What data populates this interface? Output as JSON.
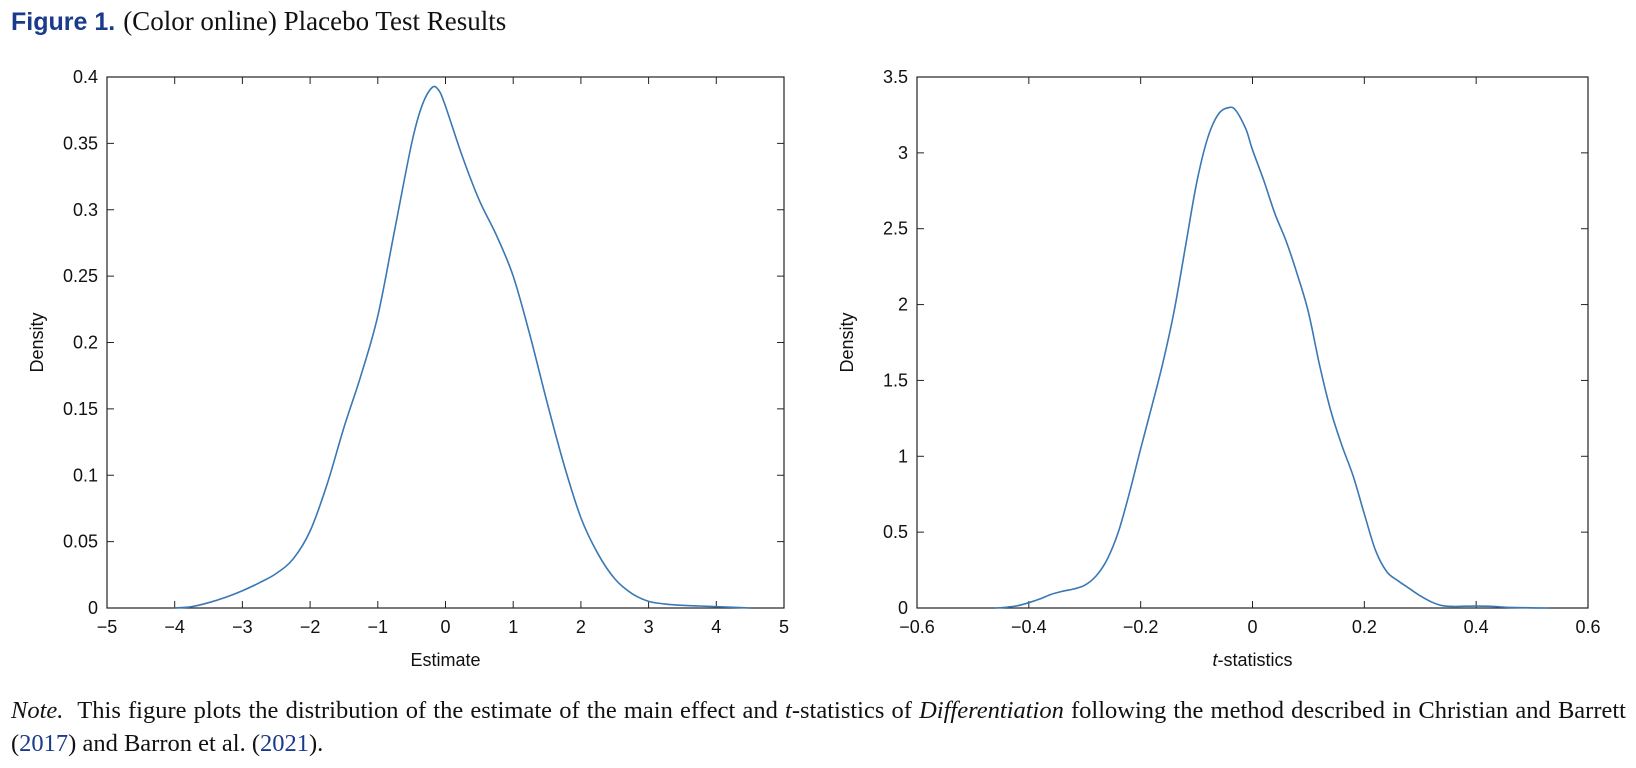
{
  "figure": {
    "label": "Figure 1.",
    "title": "(Color online) Placebo Test Results"
  },
  "note": {
    "lead": "Note.",
    "text_1": "This figure plots the distribution of the estimate of the main effect and ",
    "t_italic": "t",
    "text_2": "-statistics of ",
    "diff_italic": "Differentiation",
    "text_3": " following the method described in Christian and Barrett (",
    "cite_1": "2017",
    "text_4": ") and Barron et al. (",
    "cite_2": "2021",
    "text_5": ")."
  },
  "colors": {
    "line": "#3a78b4",
    "axis": "#222222",
    "figure_label": "#1a3a8c"
  },
  "chart_data": [
    {
      "type": "line",
      "title": "",
      "xlabel": "Estimate",
      "ylabel": "Density",
      "xlim": [
        -5,
        5
      ],
      "ylim": [
        0,
        0.4
      ],
      "xticks": [
        -5,
        -4,
        -3,
        -2,
        -1,
        0,
        1,
        2,
        3,
        4,
        5
      ],
      "xtick_labels": [
        "−5",
        "−4",
        "−3",
        "−2",
        "−1",
        "0",
        "1",
        "2",
        "3",
        "4",
        "5"
      ],
      "yticks": [
        0,
        0.05,
        0.1,
        0.15,
        0.2,
        0.25,
        0.3,
        0.35,
        0.4
      ],
      "ytick_labels": [
        "0",
        "0.05",
        "0.1",
        "0.15",
        "0.2",
        "0.25",
        "0.3",
        "0.35",
        "0.4"
      ],
      "grid": false,
      "series": [
        {
          "x": [
            -4.0,
            -3.75,
            -3.5,
            -3.25,
            -3.0,
            -2.75,
            -2.5,
            -2.25,
            -2.0,
            -1.75,
            -1.5,
            -1.25,
            -1.0,
            -0.75,
            -0.5,
            -0.35,
            -0.2,
            -0.1,
            0.0,
            0.25,
            0.5,
            0.75,
            1.0,
            1.25,
            1.5,
            1.75,
            2.0,
            2.25,
            2.5,
            2.75,
            3.0,
            3.25,
            3.5,
            3.75,
            4.0,
            4.25,
            4.5
          ],
          "y": [
            0.0,
            0.001,
            0.004,
            0.008,
            0.013,
            0.019,
            0.026,
            0.037,
            0.058,
            0.093,
            0.136,
            0.175,
            0.22,
            0.285,
            0.35,
            0.378,
            0.392,
            0.39,
            0.378,
            0.34,
            0.307,
            0.281,
            0.25,
            0.205,
            0.155,
            0.108,
            0.068,
            0.041,
            0.022,
            0.011,
            0.005,
            0.003,
            0.002,
            0.0015,
            0.001,
            0.0005,
            0.0
          ]
        }
      ]
    },
    {
      "type": "line",
      "title": "",
      "xlabel": "t-statistics",
      "xlabel_italic": "t",
      "xlabel_rest": "-statistics",
      "ylabel": "Density",
      "xlim": [
        -0.6,
        0.6
      ],
      "ylim": [
        0,
        3.5
      ],
      "xticks": [
        -0.6,
        -0.4,
        -0.2,
        0,
        0.2,
        0.4,
        0.6
      ],
      "xtick_labels": [
        "−0.6",
        "−0.4",
        "−0.2",
        "0",
        "0.2",
        "0.4",
        "0.6"
      ],
      "yticks": [
        0,
        0.5,
        1,
        1.5,
        2,
        2.5,
        3,
        3.5
      ],
      "ytick_labels": [
        "0",
        "0.5",
        "1",
        "1.5",
        "2",
        "2.5",
        "3",
        "3.5"
      ],
      "grid": false,
      "series": [
        {
          "x": [
            -0.46,
            -0.44,
            -0.42,
            -0.4,
            -0.38,
            -0.36,
            -0.34,
            -0.32,
            -0.3,
            -0.28,
            -0.26,
            -0.24,
            -0.22,
            -0.2,
            -0.18,
            -0.16,
            -0.14,
            -0.12,
            -0.1,
            -0.08,
            -0.06,
            -0.04,
            -0.03,
            -0.02,
            -0.01,
            0.0,
            0.02,
            0.04,
            0.06,
            0.08,
            0.1,
            0.12,
            0.14,
            0.16,
            0.18,
            0.2,
            0.22,
            0.24,
            0.26,
            0.28,
            0.3,
            0.32,
            0.34,
            0.36,
            0.38,
            0.4,
            0.42,
            0.44,
            0.46,
            0.5,
            0.53
          ],
          "y": [
            0.0,
            0.005,
            0.015,
            0.035,
            0.06,
            0.09,
            0.11,
            0.125,
            0.15,
            0.21,
            0.32,
            0.5,
            0.76,
            1.05,
            1.33,
            1.62,
            1.96,
            2.38,
            2.8,
            3.1,
            3.26,
            3.3,
            3.28,
            3.22,
            3.14,
            3.02,
            2.82,
            2.6,
            2.42,
            2.2,
            1.95,
            1.6,
            1.3,
            1.07,
            0.87,
            0.62,
            0.38,
            0.24,
            0.18,
            0.13,
            0.08,
            0.04,
            0.015,
            0.01,
            0.012,
            0.013,
            0.012,
            0.008,
            0.004,
            0.001,
            0.0
          ]
        }
      ]
    }
  ]
}
